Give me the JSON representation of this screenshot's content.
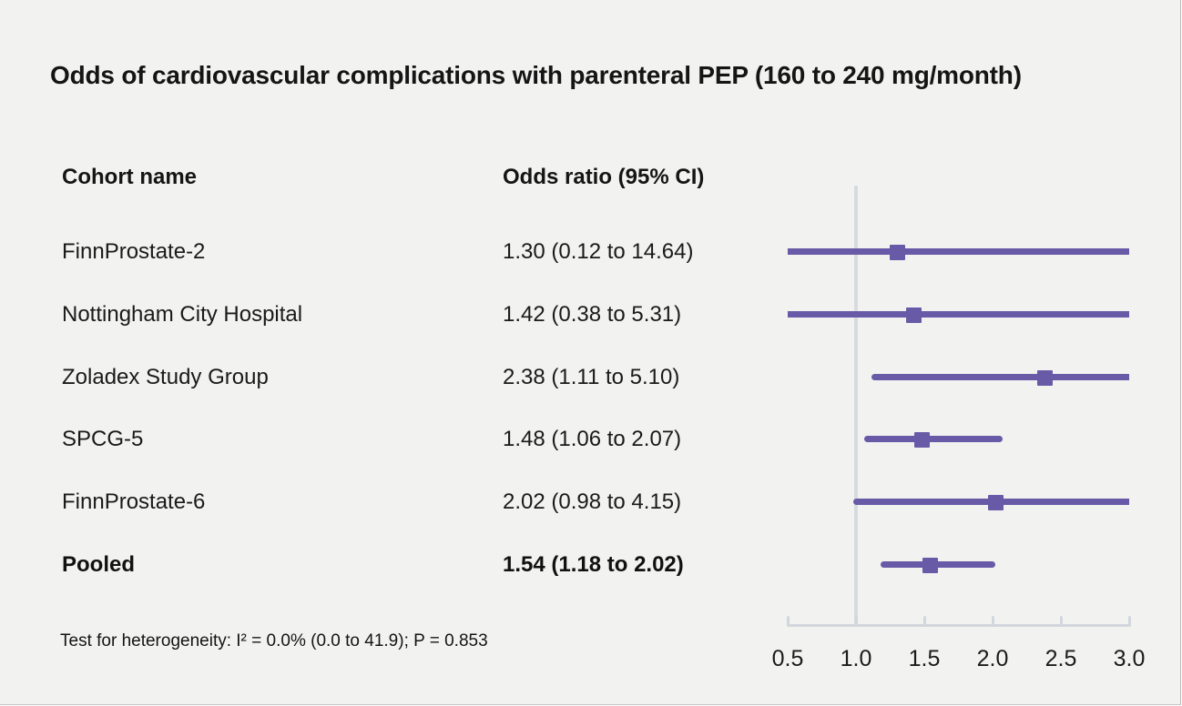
{
  "title": "Odds of cardiovascular complications with parenteral PEP (160 to 240 mg/month)",
  "table": {
    "cohort_header": "Cohort name",
    "or_header": "Odds ratio (95% CI)"
  },
  "footnote": "Test for heterogeneity: I² = 0.0% (0.0 to 41.9); P = 0.853",
  "colors": {
    "background": "#f2f2f1",
    "marker_purple": "#685aa7",
    "reference_line": "#d7dbe0",
    "axis": "#d2d7dd",
    "text": "#151515"
  },
  "chart_data": {
    "type": "forest",
    "title": "Odds of cardiovascular complications with parenteral PEP (160 to 240 mg/month)",
    "xlabel": "",
    "x_scale": {
      "min": 0.5,
      "max": 3.0,
      "ticks": [
        "0.5",
        "1.0",
        "1.5",
        "2.0",
        "2.5",
        "3.0"
      ],
      "tick_values": [
        0.5,
        1.0,
        1.5,
        2.0,
        2.5,
        3.0
      ],
      "reference_value": 1.0
    },
    "rows": [
      {
        "cohort": "FinnProstate-2",
        "or": 1.3,
        "ci_low": 0.12,
        "ci_high": 14.64,
        "label": "1.30 (0.12 to 14.64)",
        "bold": false
      },
      {
        "cohort": "Nottingham City Hospital",
        "or": 1.42,
        "ci_low": 0.38,
        "ci_high": 5.31,
        "label": "1.42 (0.38 to 5.31)",
        "bold": false
      },
      {
        "cohort": "Zoladex Study Group",
        "or": 2.38,
        "ci_low": 1.11,
        "ci_high": 5.1,
        "label": "2.38 (1.11 to 5.10)",
        "bold": false
      },
      {
        "cohort": "SPCG-5",
        "or": 1.48,
        "ci_low": 1.06,
        "ci_high": 2.07,
        "label": "1.48 (1.06 to 2.07)",
        "bold": false
      },
      {
        "cohort": "FinnProstate-6",
        "or": 2.02,
        "ci_low": 0.98,
        "ci_high": 4.15,
        "label": "2.02 (0.98 to 4.15)",
        "bold": false
      },
      {
        "cohort": "Pooled",
        "or": 1.54,
        "ci_low": 1.18,
        "ci_high": 2.02,
        "label": "1.54 (1.18 to 2.02)",
        "bold": true
      }
    ],
    "heterogeneity": "Test for heterogeneity: I² = 0.0% (0.0 to 41.9); P = 0.853"
  }
}
